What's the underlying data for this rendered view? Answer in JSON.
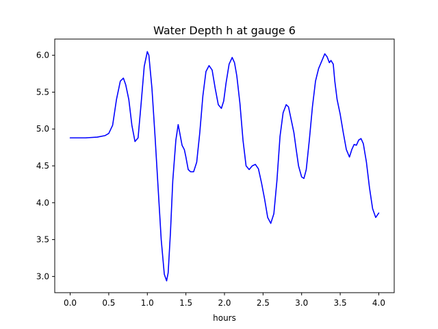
{
  "chart_data": {
    "type": "line",
    "title": "Water Depth h at gauge 6",
    "xlabel": "hours",
    "ylabel": "",
    "xlim": [
      -0.2,
      4.2
    ],
    "ylim": [
      2.78,
      6.22
    ],
    "xticks": [
      0.0,
      0.5,
      1.0,
      1.5,
      2.0,
      2.5,
      3.0,
      3.5,
      4.0
    ],
    "xtick_labels": [
      "0.0",
      "0.5",
      "1.0",
      "1.5",
      "2.0",
      "2.5",
      "3.0",
      "3.5",
      "4.0"
    ],
    "yticks": [
      3.0,
      3.5,
      4.0,
      4.5,
      5.0,
      5.5,
      6.0
    ],
    "ytick_labels": [
      "3.0",
      "3.5",
      "4.0",
      "4.5",
      "5.0",
      "5.5",
      "6.0"
    ],
    "grid": false,
    "series": [
      {
        "color": "#0000ff",
        "x": [
          0.0,
          0.2,
          0.35,
          0.45,
          0.5,
          0.55,
          0.6,
          0.65,
          0.69,
          0.72,
          0.76,
          0.8,
          0.84,
          0.88,
          0.92,
          0.96,
          1.0,
          1.02,
          1.06,
          1.1,
          1.14,
          1.18,
          1.22,
          1.25,
          1.27,
          1.3,
          1.33,
          1.37,
          1.4,
          1.42,
          1.45,
          1.48,
          1.5,
          1.53,
          1.56,
          1.6,
          1.64,
          1.68,
          1.72,
          1.76,
          1.8,
          1.84,
          1.88,
          1.92,
          1.96,
          1.99,
          2.02,
          2.06,
          2.1,
          2.13,
          2.16,
          2.2,
          2.24,
          2.28,
          2.32,
          2.36,
          2.4,
          2.44,
          2.48,
          2.52,
          2.56,
          2.6,
          2.64,
          2.68,
          2.72,
          2.76,
          2.8,
          2.83,
          2.86,
          2.9,
          2.93,
          2.96,
          3.0,
          3.03,
          3.06,
          3.1,
          3.14,
          3.18,
          3.22,
          3.26,
          3.3,
          3.33,
          3.36,
          3.38,
          3.41,
          3.43,
          3.46,
          3.5,
          3.54,
          3.58,
          3.62,
          3.65,
          3.68,
          3.71,
          3.74,
          3.77,
          3.8,
          3.84,
          3.88,
          3.92,
          3.96,
          4.0
        ],
        "y": [
          4.88,
          4.88,
          4.89,
          4.91,
          4.94,
          5.05,
          5.4,
          5.65,
          5.69,
          5.6,
          5.4,
          5.05,
          4.83,
          4.88,
          5.35,
          5.85,
          6.05,
          6.0,
          5.55,
          4.9,
          4.2,
          3.5,
          3.03,
          2.94,
          3.05,
          3.6,
          4.3,
          4.85,
          5.06,
          4.95,
          4.78,
          4.72,
          4.62,
          4.45,
          4.42,
          4.42,
          4.55,
          4.95,
          5.45,
          5.78,
          5.86,
          5.8,
          5.55,
          5.33,
          5.28,
          5.38,
          5.62,
          5.88,
          5.97,
          5.9,
          5.72,
          5.35,
          4.85,
          4.5,
          4.45,
          4.5,
          4.52,
          4.46,
          4.27,
          4.05,
          3.8,
          3.72,
          3.85,
          4.3,
          4.9,
          5.22,
          5.33,
          5.3,
          5.15,
          4.95,
          4.72,
          4.5,
          4.35,
          4.33,
          4.45,
          4.85,
          5.3,
          5.65,
          5.82,
          5.92,
          6.02,
          5.98,
          5.9,
          5.93,
          5.88,
          5.65,
          5.4,
          5.2,
          4.95,
          4.72,
          4.62,
          4.72,
          4.79,
          4.78,
          4.85,
          4.87,
          4.8,
          4.55,
          4.2,
          3.92,
          3.8,
          3.86
        ]
      }
    ]
  }
}
